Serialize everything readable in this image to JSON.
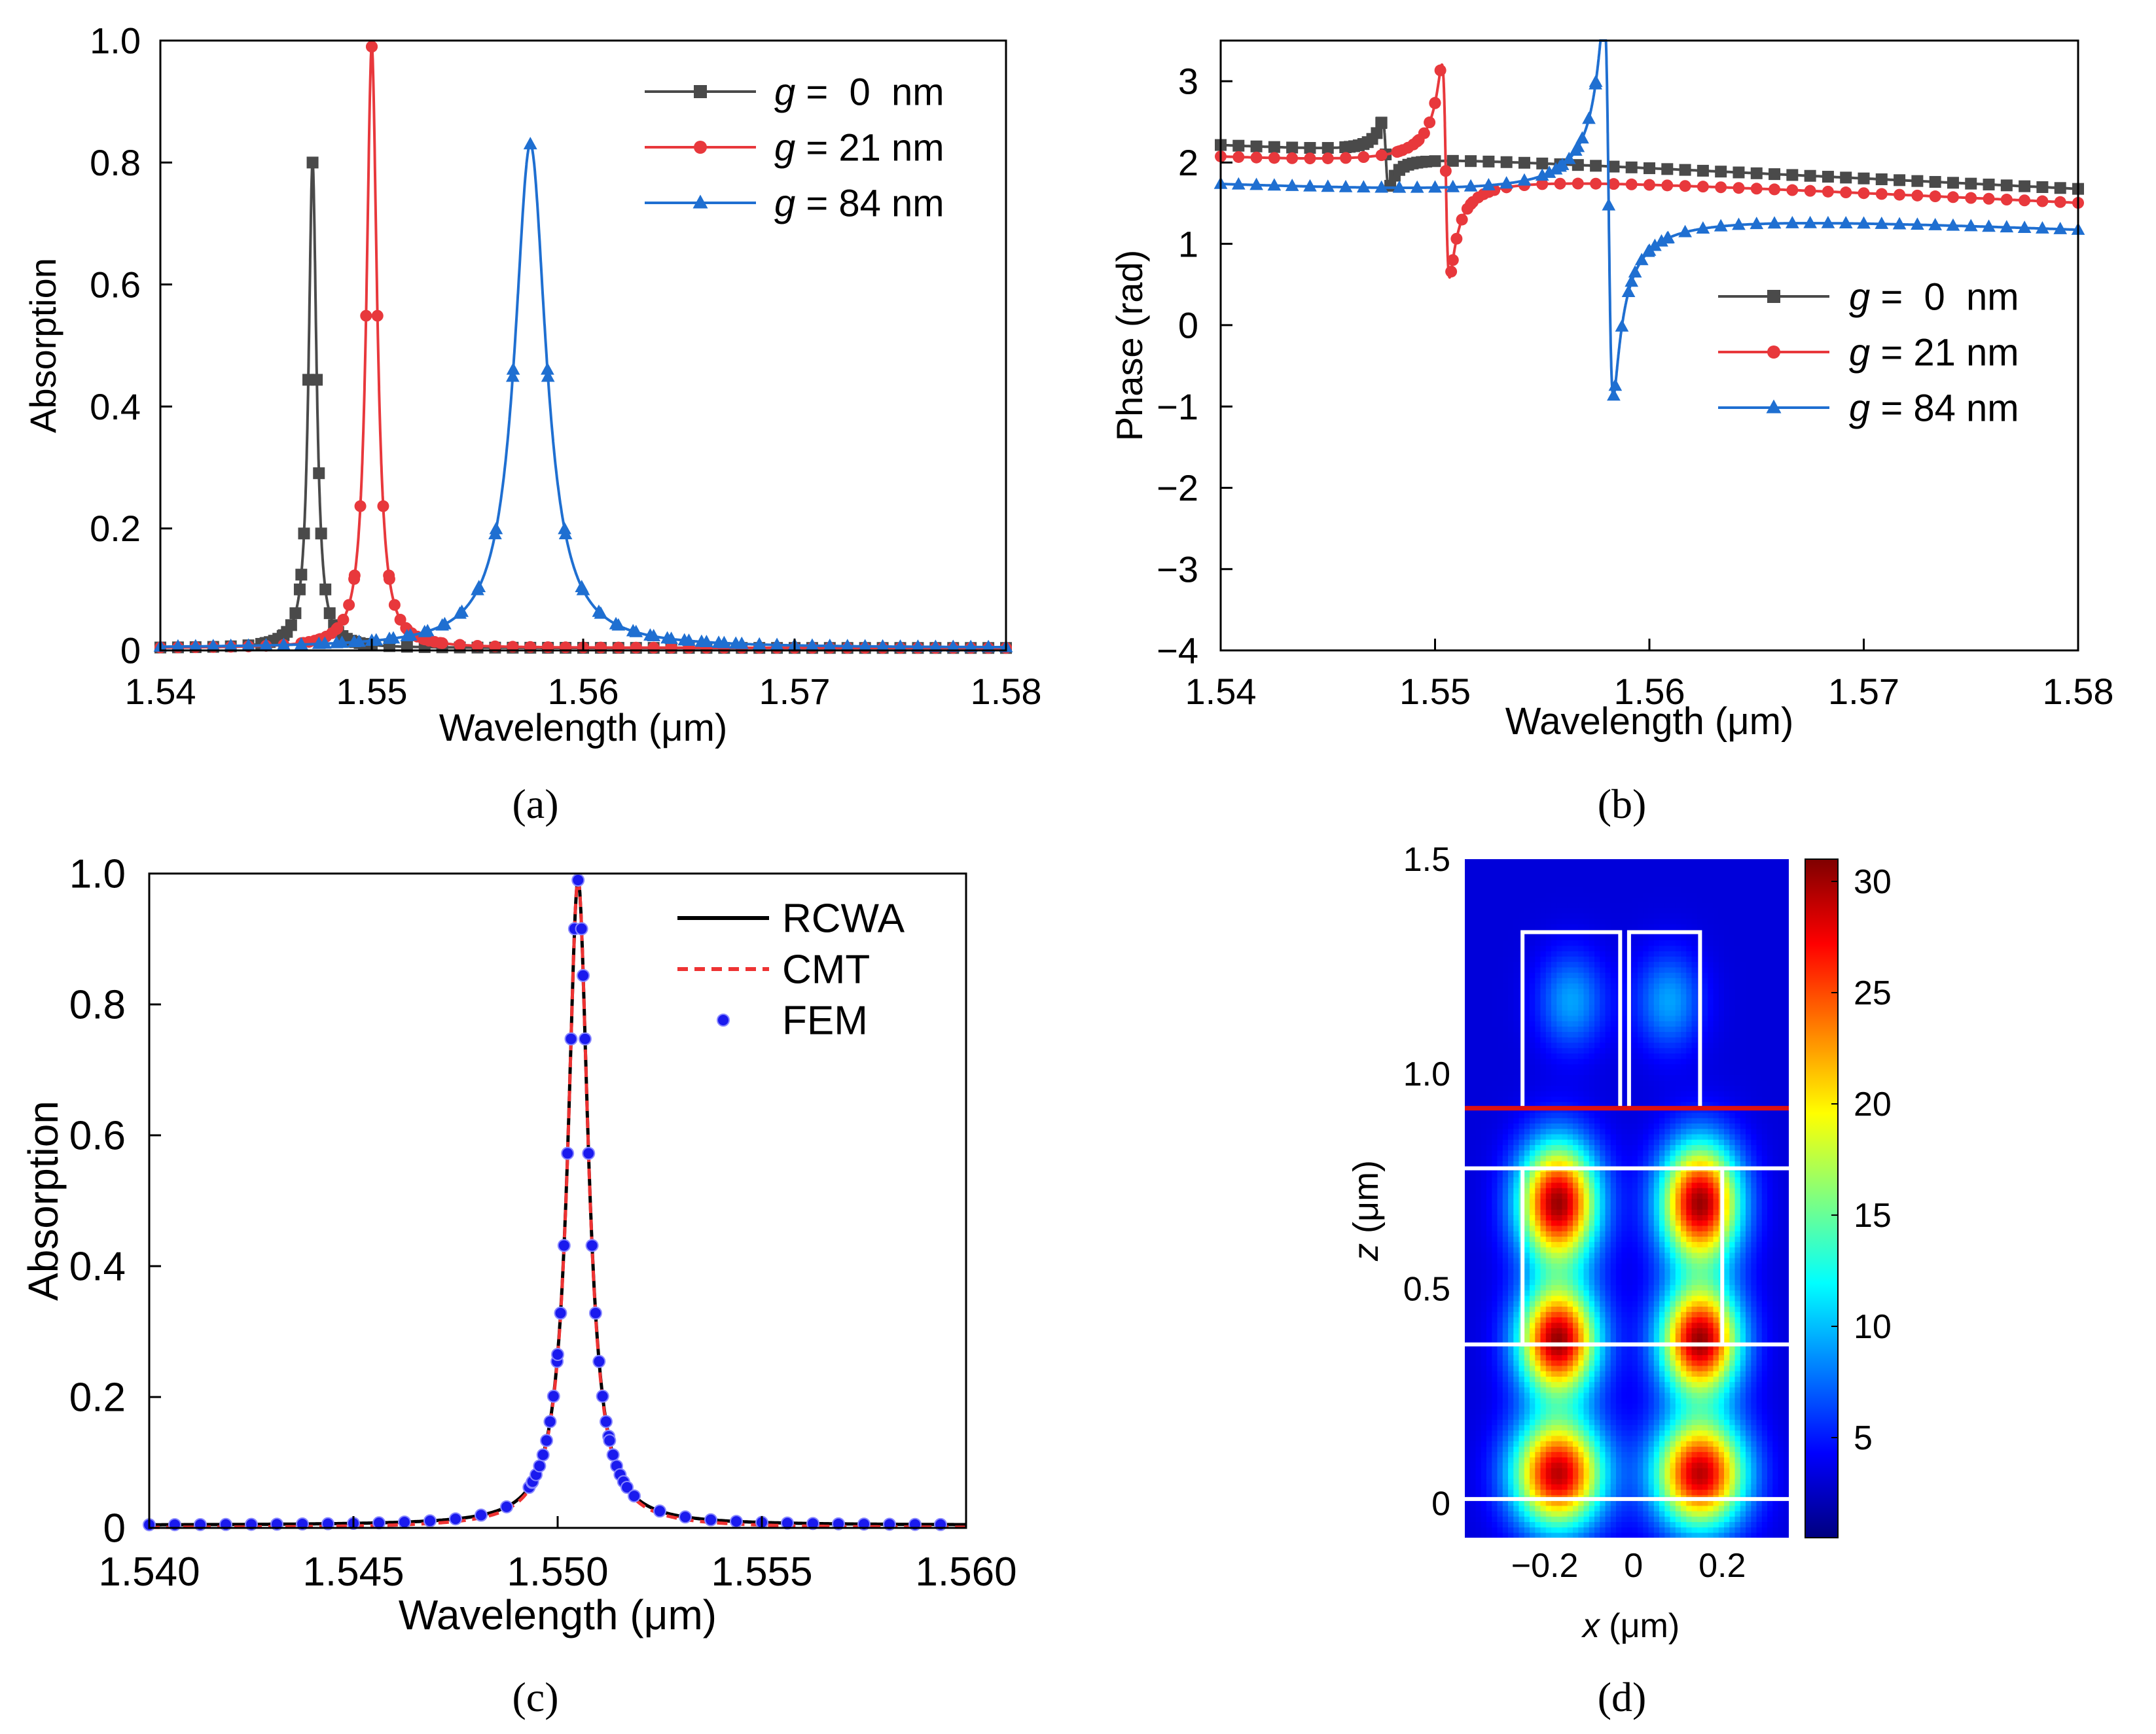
{
  "colors": {
    "g0": "#4a4a4a",
    "g21": "#e8383c",
    "g84": "#1f6fd1",
    "rcwa": "#000000",
    "cmt": "#ee3333",
    "fem": "#1a1aee",
    "waveguide_line": "#dd1111",
    "structure_outline": "#ffffff"
  },
  "chart_data": [
    {
      "id": "a",
      "type": "line",
      "panel_label": "(a)",
      "title": "",
      "xlabel": "Wavelength (μm)",
      "ylabel": "Absorption",
      "xlim": [
        1.54,
        1.58
      ],
      "ylim": [
        0,
        1.0
      ],
      "xticks": [
        1.54,
        1.55,
        1.56,
        1.57,
        1.58
      ],
      "xtick_labels": [
        "1.54",
        "1.55",
        "1.56",
        "1.57",
        "1.58"
      ],
      "yticks": [
        0,
        0.2,
        0.4,
        0.6,
        0.8,
        1.0
      ],
      "ytick_labels": [
        "0",
        "0.2",
        "0.4",
        "0.6",
        "0.8",
        "1.0"
      ],
      "legend_position": "top-right",
      "series": [
        {
          "name": "g =  0  nm",
          "legend_g": "g",
          "legend_rest": " =  0  nm",
          "color_key": "g0",
          "marker": "square",
          "model": {
            "type": "lorentz",
            "center": 1.5472,
            "fwhm": 0.00045,
            "peak": 0.8,
            "base": 0.004
          }
        },
        {
          "name": "g = 21 nm",
          "legend_g": "g",
          "legend_rest": " = 21 nm",
          "color_key": "g21",
          "marker": "circle",
          "model": {
            "type": "lorentz",
            "center": 1.55,
            "fwhm": 0.0006,
            "peak": 0.99,
            "base": 0.004
          }
        },
        {
          "name": "g = 84 nm",
          "legend_g": "g",
          "legend_rest": " = 84 nm",
          "color_key": "g84",
          "marker": "triangle",
          "model": {
            "type": "lorentz",
            "center": 1.5575,
            "fwhm": 0.0018,
            "peak": 0.83,
            "base": 0.004
          }
        }
      ]
    },
    {
      "id": "b",
      "type": "line",
      "panel_label": "(b)",
      "title": "",
      "xlabel": "Wavelength (μm)",
      "ylabel": "Phase (rad)",
      "xlim": [
        1.54,
        1.58
      ],
      "ylim": [
        -4,
        3.5
      ],
      "xticks": [
        1.54,
        1.55,
        1.56,
        1.57,
        1.58
      ],
      "xtick_labels": [
        "1.54",
        "1.55",
        "1.56",
        "1.57",
        "1.58"
      ],
      "yticks": [
        -4,
        -3,
        -2,
        -1,
        0,
        1,
        2,
        3
      ],
      "ytick_labels": [
        "−4",
        "−3",
        "−2",
        "−1",
        "0",
        "1",
        "2",
        "3"
      ],
      "legend_position": "middle-right",
      "series": [
        {
          "name": "g =  0  nm",
          "legend_g": "g",
          "legend_rest": " =  0  nm",
          "color_key": "g0",
          "marker": "square",
          "model": {
            "type": "phase",
            "base_start": 2.2,
            "base_end": 1.68,
            "center": 1.5477,
            "width": 0.00015,
            "amp": 0.45
          }
        },
        {
          "name": "g = 21 nm",
          "legend_g": "g",
          "legend_rest": " = 21 nm",
          "color_key": "g21",
          "marker": "circle",
          "model": {
            "type": "phase",
            "base_start": 2.03,
            "base_end": 1.52,
            "center": 1.5505,
            "width": 0.00018,
            "amp": 1.45
          }
        },
        {
          "name": "g = 84 nm",
          "legend_g": "g",
          "legend_rest": " = 84 nm",
          "color_key": "g84",
          "marker": "triangle",
          "model": {
            "type": "phase",
            "base_start": 1.68,
            "base_end": 1.22,
            "center": 1.5581,
            "width": 0.00022,
            "amp": 2.6
          }
        }
      ]
    },
    {
      "id": "c",
      "type": "line",
      "panel_label": "(c)",
      "title": "",
      "xlabel": "Wavelength (μm)",
      "ylabel": "Absorption",
      "xlim": [
        1.54,
        1.56
      ],
      "ylim": [
        0,
        1.0
      ],
      "xticks": [
        1.54,
        1.545,
        1.55,
        1.555,
        1.56
      ],
      "xtick_labels": [
        "1.540",
        "1.545",
        "1.550",
        "1.555",
        "1.560"
      ],
      "yticks": [
        0,
        0.2,
        0.4,
        0.6,
        0.8,
        1.0
      ],
      "ytick_labels": [
        "0",
        "0.2",
        "0.4",
        "0.6",
        "0.8",
        "1.0"
      ],
      "legend_position": "top-right",
      "series": [
        {
          "name": "RCWA",
          "color_key": "rcwa",
          "style": "solid",
          "model": {
            "type": "lorentz",
            "center": 1.5505,
            "fwhm": 0.0006,
            "peak": 0.99,
            "base": 0.004
          }
        },
        {
          "name": "CMT",
          "color_key": "cmt",
          "style": "dashed",
          "model": {
            "type": "lorentz",
            "center": 1.5505,
            "fwhm": 0.0006,
            "peak": 0.99,
            "base": 0.0
          }
        },
        {
          "name": "FEM",
          "color_key": "fem",
          "style": "points",
          "model": {
            "type": "lorentz",
            "center": 1.5505,
            "fwhm": 0.0006,
            "peak": 0.99,
            "base": 0.004
          }
        }
      ]
    },
    {
      "id": "d",
      "type": "heatmap",
      "panel_label": "(d)",
      "title": "",
      "xlabel_var": "x",
      "xlabel_unit": " (μm)",
      "ylabel_var": "z",
      "ylabel_unit": " (μm)",
      "xlim": [
        -0.38,
        0.35
      ],
      "ylim": [
        -0.08,
        1.5
      ],
      "xticks": [
        -0.2,
        0,
        0.2
      ],
      "xtick_labels": [
        "−0.2",
        "0",
        "0.2"
      ],
      "yticks": [
        0,
        0.5,
        1.0,
        1.5
      ],
      "ytick_labels": [
        "0",
        "0.5",
        "1.0",
        "1.5"
      ],
      "colorbar": {
        "min": 0.5,
        "max": 31,
        "ticks": [
          5,
          10,
          15,
          20,
          25,
          30
        ],
        "tick_labels": [
          "5",
          "10",
          "15",
          "20",
          "25",
          "30"
        ],
        "colormap": "jet"
      },
      "hotspots": [
        {
          "x": -0.17,
          "z": 0.7,
          "value": 30,
          "sx": 0.07,
          "sz": 0.11
        },
        {
          "x": 0.15,
          "z": 0.7,
          "value": 30,
          "sx": 0.07,
          "sz": 0.11
        },
        {
          "x": -0.17,
          "z": 0.38,
          "value": 30,
          "sx": 0.07,
          "sz": 0.1
        },
        {
          "x": 0.15,
          "z": 0.38,
          "value": 30,
          "sx": 0.07,
          "sz": 0.1
        },
        {
          "x": -0.17,
          "z": 0.07,
          "value": 29,
          "sx": 0.08,
          "sz": 0.1
        },
        {
          "x": 0.15,
          "z": 0.07,
          "value": 29,
          "sx": 0.08,
          "sz": 0.1
        },
        {
          "x": -0.14,
          "z": 1.17,
          "value": 9,
          "sx": 0.06,
          "sz": 0.09
        },
        {
          "x": 0.08,
          "z": 1.17,
          "value": 9,
          "sx": 0.06,
          "sz": 0.09
        }
      ],
      "structure": {
        "upper_rects": [
          {
            "x0": -0.25,
            "x1": -0.03,
            "z0": 0.92,
            "z1": 1.33
          },
          {
            "x0": -0.01,
            "x1": 0.15,
            "z0": 0.92,
            "z1": 1.33
          }
        ],
        "lower_rect": {
          "x0": -0.25,
          "x1": 0.2,
          "z0": 0.37,
          "z1": 0.78
        },
        "hlines_white": [
          0.78,
          0.37,
          0.01
        ],
        "hline_red": 0.92
      }
    }
  ]
}
